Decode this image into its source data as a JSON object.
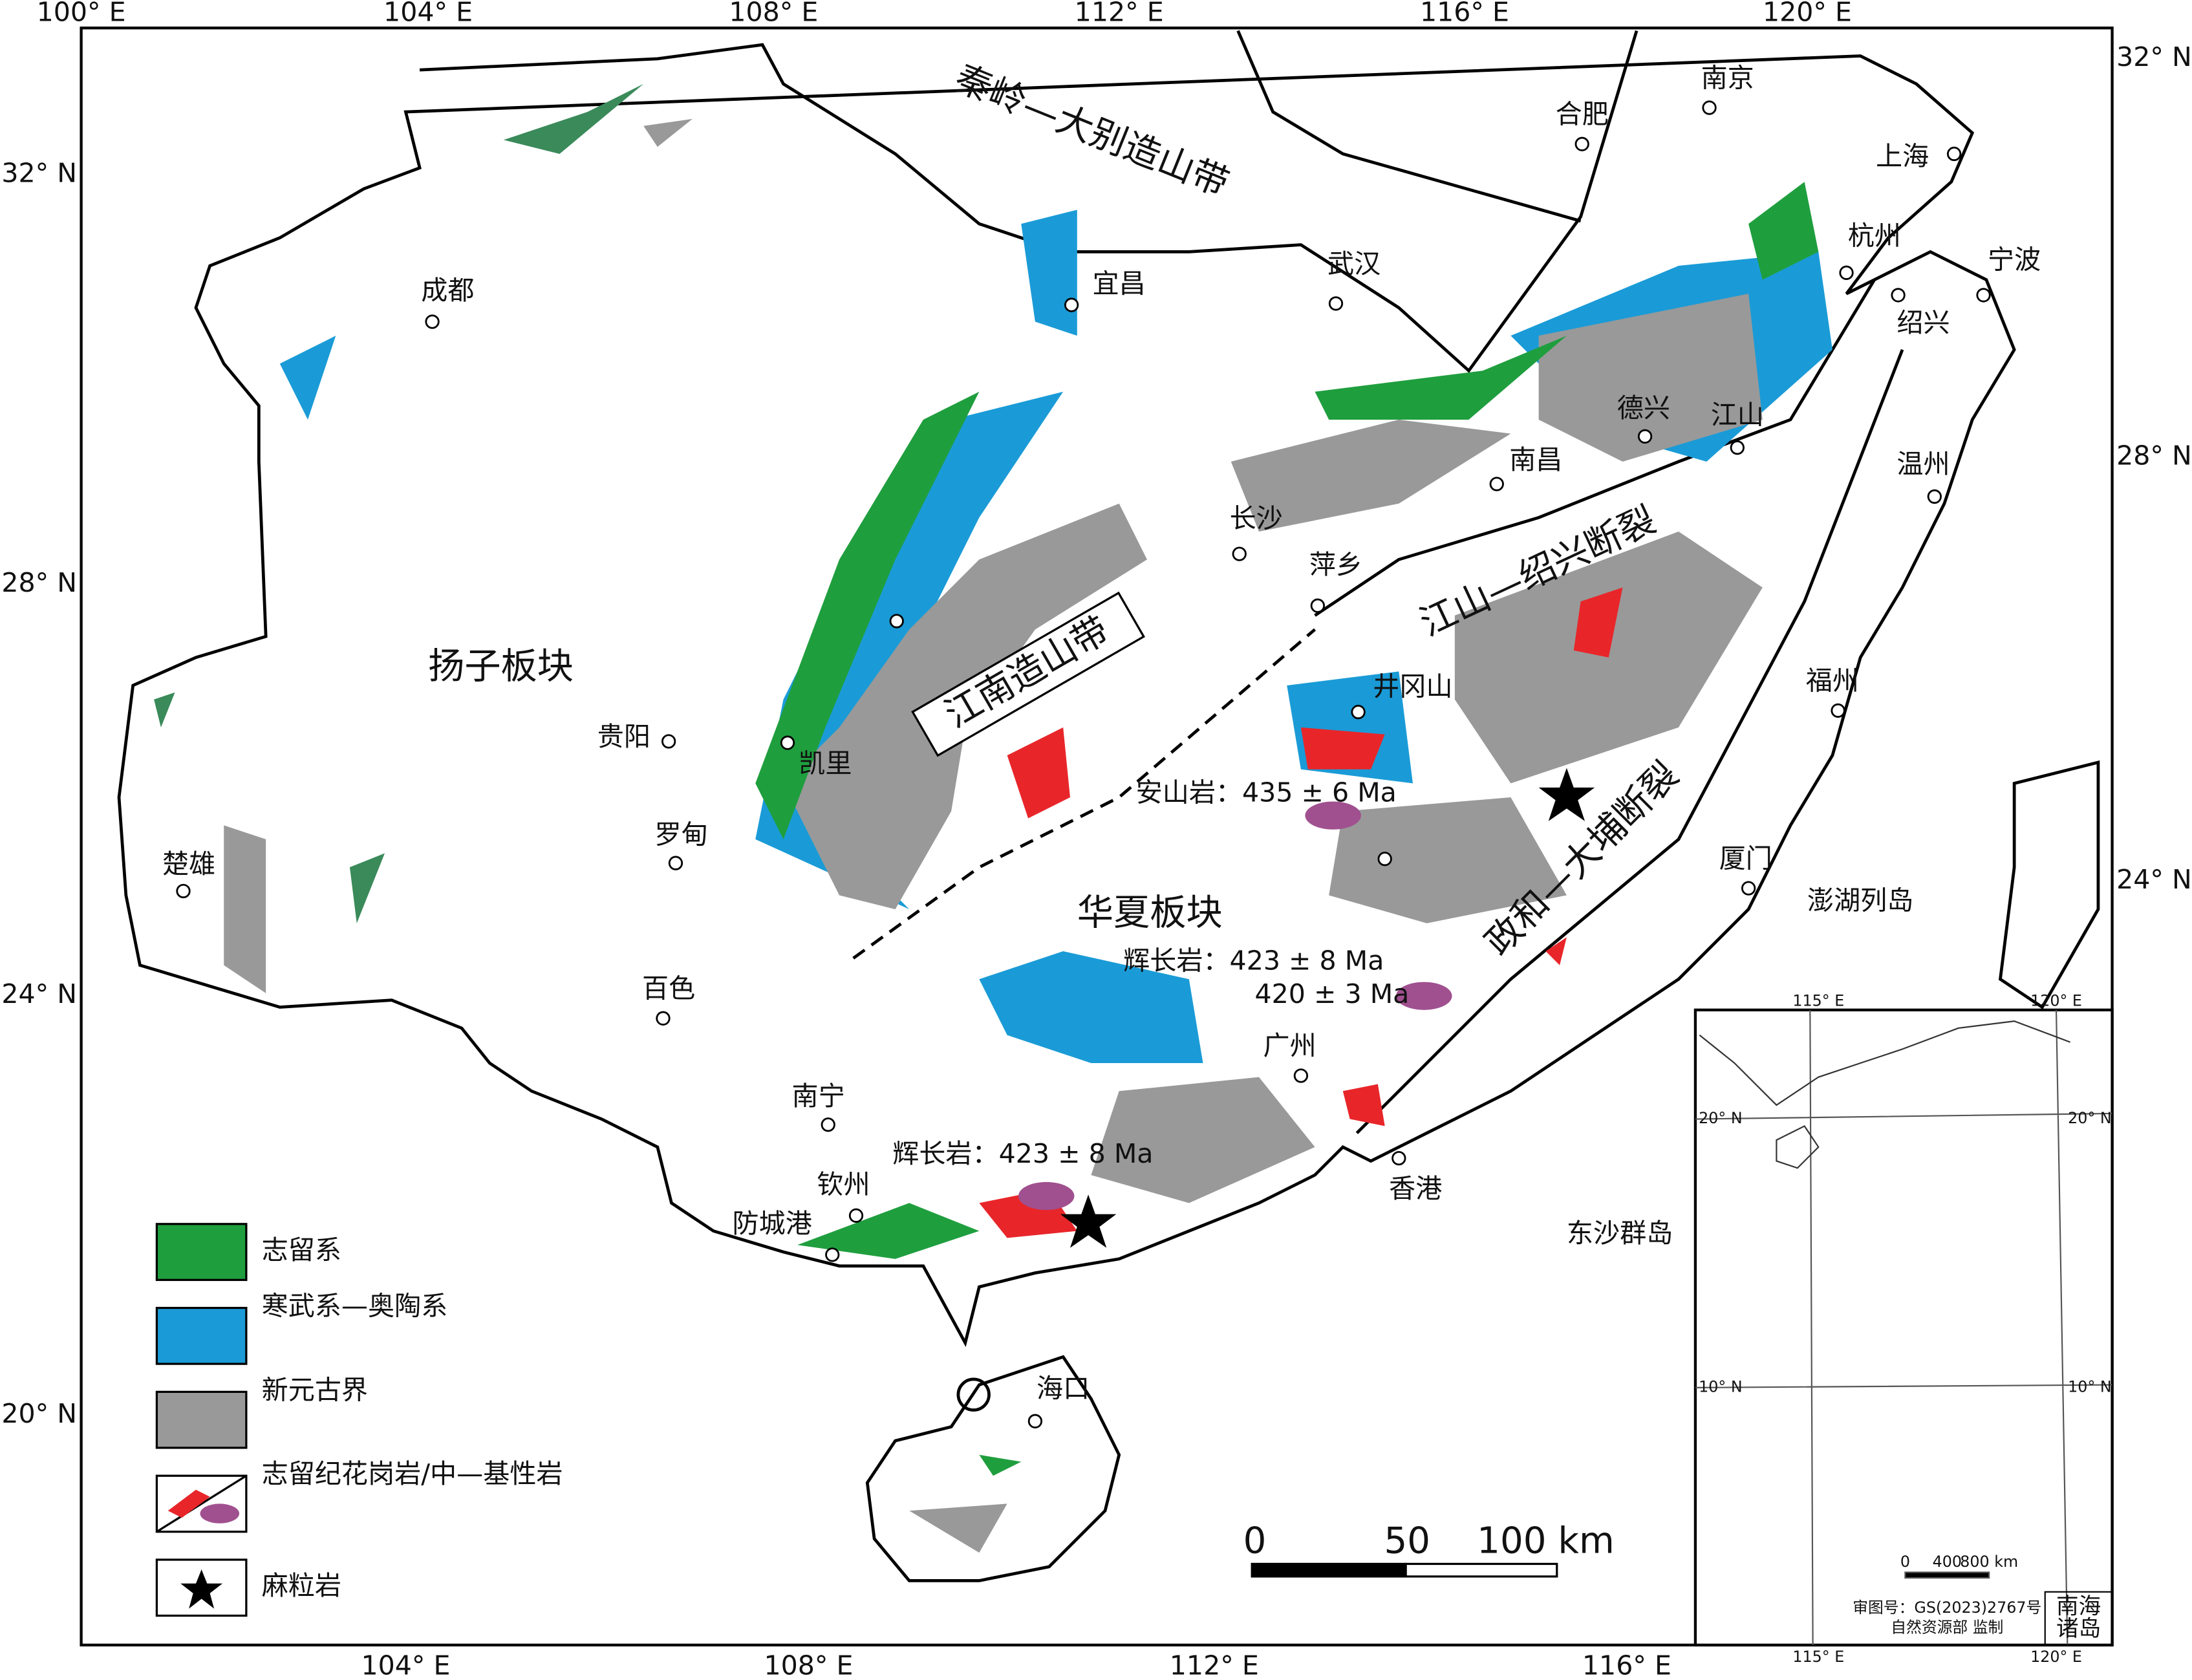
{
  "graticule": {
    "top": [
      "100° E",
      "104° E",
      "108° E",
      "112° E",
      "116° E",
      "120° E"
    ],
    "bottom": [
      "104° E",
      "108° E",
      "112° E",
      "116° E"
    ],
    "left": [
      "32° N",
      "28° N",
      "24° N",
      "20° N"
    ],
    "right": [
      "32° N",
      "28° N",
      "24° N"
    ]
  },
  "regions": [
    "秦岭—大别造山带",
    "扬子板块",
    "江南造山带",
    "华夏板块",
    "江山—绍兴断裂",
    "政和—大埔断裂"
  ],
  "cities": [
    "南京",
    "合肥",
    "上海",
    "杭州",
    "宁波",
    "绍兴",
    "武汉",
    "宜昌",
    "成都",
    "德兴",
    "江山",
    "南昌",
    "温州",
    "长沙",
    "萍乡",
    "井冈山",
    "福州",
    "贵阳",
    "凯里",
    "罗甸",
    "楚雄",
    "厦门",
    "百色",
    "广州",
    "南宁",
    "香港",
    "钦州",
    "防城港",
    "海口"
  ],
  "ages": [
    "安山岩：435 ± 6 Ma",
    "辉长岩：423 ± 8 Ma",
    "420 ± 3 Ma",
    "辉长岩：423 ± 8 Ma"
  ],
  "islands": [
    "澎湖列岛",
    "东沙群岛"
  ],
  "legend": [
    "志留系",
    "寒武系—奥陶系",
    "新元古界",
    "志留纪花岗岩/中—基性岩",
    "麻粒岩"
  ],
  "scale": [
    "0",
    "50",
    "100 km"
  ],
  "inset": {
    "top": [
      "115° E",
      "120° E"
    ],
    "bottom": [
      "115° E",
      "120° E"
    ],
    "left": [
      "20° N",
      "10° N"
    ],
    "right": [
      "20° N",
      "10° N"
    ],
    "scale": [
      "0",
      "400",
      "800 km"
    ],
    "note": [
      "审图号：GS(2023)2767号",
      "自然资源部 监制"
    ],
    "label": [
      "南海",
      "诸岛"
    ]
  }
}
